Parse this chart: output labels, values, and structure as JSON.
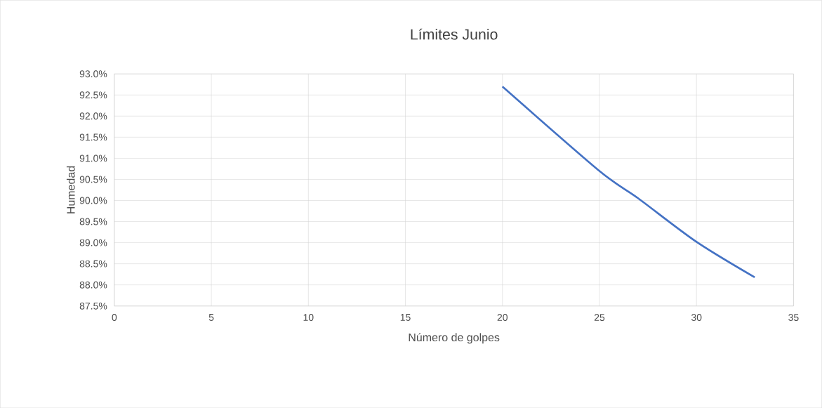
{
  "chart_data": {
    "type": "line",
    "title": "Límites Junio",
    "xlabel": "Número de golpes",
    "ylabel": "Humedad",
    "x": [
      20,
      25,
      27,
      30,
      33
    ],
    "series": [
      {
        "color": "#4472c4",
        "values": [
          92.7,
          90.7,
          90.05,
          89.02,
          88.18
        ]
      }
    ],
    "xlim": [
      0,
      35
    ],
    "xticks": [
      0,
      5,
      10,
      15,
      20,
      25,
      30,
      35
    ],
    "ylim": [
      87.5,
      93.0
    ],
    "yticks": [
      {
        "value": 87.5,
        "label": "87.5%"
      },
      {
        "value": 88.0,
        "label": "88.0%"
      },
      {
        "value": 88.5,
        "label": "88.5%"
      },
      {
        "value": 89.0,
        "label": "89.0%"
      },
      {
        "value": 89.5,
        "label": "89.5%"
      },
      {
        "value": 90.0,
        "label": "90.0%"
      },
      {
        "value": 90.5,
        "label": "90.5%"
      },
      {
        "value": 91.0,
        "label": "91.0%"
      },
      {
        "value": 91.5,
        "label": "91.5%"
      },
      {
        "value": 92.0,
        "label": "92.0%"
      },
      {
        "value": 92.5,
        "label": "92.5%"
      },
      {
        "value": 93.0,
        "label": "93.0%"
      }
    ],
    "grid": true,
    "marker": "none",
    "line_style": "solid"
  }
}
